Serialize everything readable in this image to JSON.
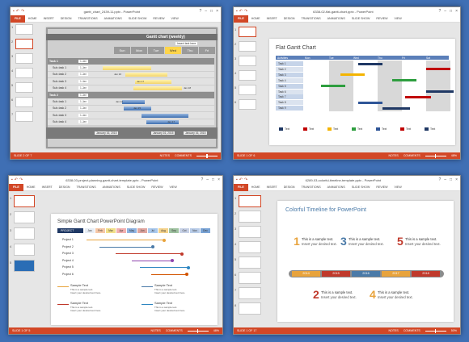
{
  "tabs": [
    "FILE",
    "HOME",
    "INSERT",
    "DESIGN",
    "TRANSITIONS",
    "ANIMATIONS",
    "SLIDE SHOW",
    "REVIEW",
    "VIEW"
  ],
  "w1": {
    "title": "gantt_chart_2439-11.pptx - PowerPoint",
    "slide_title": "Gantt chart (weekly)",
    "insert_text": "Insert text here",
    "days": [
      "Sun",
      "Mon",
      "Tue",
      "Wed",
      "Thu",
      "Fri"
    ],
    "rows": [
      {
        "label": "Task 1",
        "date": "1-Jan",
        "group": true
      },
      {
        "label": "Sub-task 1",
        "date": "1-Jan",
        "group": false
      },
      {
        "label": "Sub-task 2",
        "date": "1-Jan",
        "group": false
      },
      {
        "label": "Sub-task 3",
        "date": "1-Jan",
        "group": false
      },
      {
        "label": "Sub-task 4",
        "date": "1-Jan",
        "group": false
      },
      {
        "label": "Task 2",
        "date": "1-Jan",
        "group": true
      },
      {
        "label": "Sub-task 1",
        "date": "1-Jan",
        "group": false
      },
      {
        "label": "Sub-task 2",
        "date": "1-Jan",
        "group": false
      },
      {
        "label": "Sub-task 3",
        "date": "1-Jan",
        "group": false
      },
      {
        "label": "Sub-task 4",
        "date": "1-Jan",
        "group": false
      }
    ],
    "bar_labels": [
      "Jan 16",
      "Jan 17",
      "Jan 18",
      "Jan 12",
      "Jan 15",
      "Jan 17"
    ],
    "footer_dates": [
      "January 16, 2015",
      "January 16, 2015",
      "January 16, 2015"
    ],
    "status": "SLIDE 2 OF 7",
    "notes": "NOTES",
    "comments": "COMMENTS"
  },
  "w2": {
    "title": "6338-02-flat-gantt-chart.pptx - PowerPoint",
    "slide_title": "Flat Gantt Chart",
    "header": [
      "Activities",
      "Mon",
      "Tue",
      "Wed",
      "Thu",
      "Fri",
      "Sat"
    ],
    "tasks": [
      "Task 1",
      "Task 2",
      "Task 3",
      "Task 4",
      "Task 5",
      "Task 6",
      "Task 7",
      "Task 8",
      "Task 9"
    ],
    "legend": [
      "Text",
      "Text",
      "Text",
      "Text",
      "Text",
      "Text",
      "Text"
    ],
    "legend_colors": [
      "#1f3864",
      "#c00000",
      "#f4b400",
      "#2e9e3f",
      "#2f5597",
      "#c00000",
      "#1f3864"
    ],
    "status": "SLIDE 1 OF 6",
    "notes": "NOTES",
    "comments": "COMMENTS",
    "zoom": "48%"
  },
  "w3": {
    "title": "6338-03-project-planning-gantt-chart-template.pptx - PowerPoint",
    "slide_title": "Simple Gantt Chart PowerPoint Diagram",
    "project": "PROJECT",
    "months": [
      "Jan",
      "Feb",
      "Mar",
      "Apr",
      "May",
      "Jun",
      "Jul",
      "Aug",
      "Sep",
      "Oct",
      "Nov",
      "Dec"
    ],
    "projects": [
      "Project 1",
      "Project 2",
      "Project 3",
      "Project 4",
      "Project 5",
      "Project 6"
    ],
    "sample_title": "Sample Text",
    "sample_body1": "This is a sample text.",
    "sample_body2": "Insert your desired text here.",
    "status": "SLIDE 1 OF 5",
    "notes": "NOTES",
    "comments": "COMMENTS",
    "zoom": "48%"
  },
  "w4": {
    "title": "6289-03-colorful-timeline-template.pptx - PowerPoint",
    "slide_title": "Colorful Timeline for PowerPoint",
    "items": [
      {
        "num": "1",
        "color": "#e8a33c",
        "line1": "This is a sample text.",
        "line2": "Insert your desired text."
      },
      {
        "num": "3",
        "color": "#4a7aa8",
        "line1": "This is a sample text.",
        "line2": "Insert your desired text."
      },
      {
        "num": "5",
        "color": "#c0392b",
        "line1": "This is a sample text.",
        "line2": "Insert your desired text."
      },
      {
        "num": "2",
        "color": "#c0392b",
        "line1": "This is a sample text.",
        "line2": "Insert your desired text."
      },
      {
        "num": "4",
        "color": "#e8a33c",
        "line1": "This is a sample text.",
        "line2": "Insert your desired text."
      }
    ],
    "years": [
      "2014",
      "2015",
      "2016",
      "2017",
      "2018"
    ],
    "year_colors": [
      "#e8a33c",
      "#c0392b",
      "#4a7aa8",
      "#e8a33c",
      "#c0392b"
    ],
    "status": "SLIDE 1 OF 17",
    "notes": "NOTES",
    "comments": "COMMENTS",
    "zoom": "50%"
  }
}
